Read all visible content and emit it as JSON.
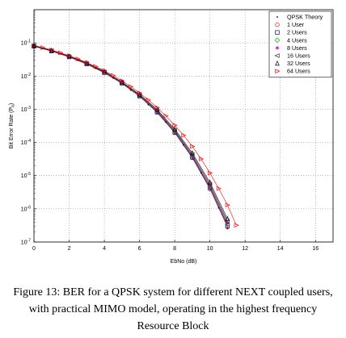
{
  "chart_data": {
    "type": "line",
    "title": "",
    "xlabel": "EbNo (dB)",
    "ylabel": "Bit Error Rate (P_b)",
    "ylabel_main": "Bit Error Rate (P",
    "ylabel_sub": "b",
    "ylabel_close": ")",
    "xlim": [
      0,
      17
    ],
    "ylim": [
      1e-07,
      1
    ],
    "yscale": "log",
    "grid": true,
    "legend_position": "top-right",
    "xticks": [
      0,
      2,
      4,
      6,
      8,
      10,
      12,
      14,
      16
    ],
    "xtick_labels": [
      "0",
      "2",
      "4",
      "6",
      "8",
      "10",
      "12",
      "14",
      "16"
    ],
    "yticks": [
      0.1,
      0.01,
      0.001,
      0.0001,
      1e-05,
      1e-06,
      1e-07
    ],
    "ytick_labels": [
      {
        "base": "10",
        "exp": "-1"
      },
      {
        "base": "10",
        "exp": "-2"
      },
      {
        "base": "10",
        "exp": "-3"
      },
      {
        "base": "10",
        "exp": "-4"
      },
      {
        "base": "10",
        "exp": "-5"
      },
      {
        "base": "10",
        "exp": "-6"
      },
      {
        "base": "10",
        "exp": "-7"
      }
    ],
    "series": [
      {
        "name": "QPSK Theory",
        "marker": "dot",
        "color": "#000000",
        "x": [
          0,
          0.5,
          1,
          1.5,
          2,
          2.5,
          3,
          3.5,
          4,
          4.5,
          5,
          5.5,
          6,
          6.5,
          7,
          7.5,
          8,
          8.5,
          9,
          9.5,
          10,
          10.5,
          11
        ],
        "y": [
          0.0786,
          0.0671,
          0.0563,
          0.0464,
          0.0375,
          0.0296,
          0.0229,
          0.0172,
          0.0125,
          0.00873,
          0.00587,
          0.00378,
          0.00239,
          0.00137,
          0.000773,
          0.000408,
          0.000191,
          8.39e-05,
          3.36e-05,
          1.21e-05,
          3.87e-06,
          1.07e-06,
          2.61e-07
        ]
      },
      {
        "name": "1 User",
        "marker": "circle",
        "color": "#ff0000",
        "x": [
          0,
          1,
          2,
          3,
          4,
          5,
          6,
          7,
          8,
          9,
          10,
          11
        ],
        "y": [
          0.0786,
          0.0563,
          0.0375,
          0.0229,
          0.0125,
          0.00597,
          0.00245,
          0.0008,
          0.000195,
          3.45e-05,
          4e-06,
          2.8e-07
        ]
      },
      {
        "name": "2 Users",
        "marker": "square",
        "color": "#000099",
        "x": [
          0,
          1,
          2,
          3,
          4,
          5,
          6,
          7,
          8,
          9,
          10,
          11
        ],
        "y": [
          0.079,
          0.0566,
          0.0378,
          0.0231,
          0.0127,
          0.00605,
          0.00249,
          0.00082,
          0.000201,
          3.58e-05,
          4.3e-06,
          3.1e-07
        ]
      },
      {
        "name": "4 Users",
        "marker": "diamond",
        "color": "#00aa00",
        "x": [
          0,
          1,
          2,
          3,
          4,
          5,
          6,
          7,
          8,
          9,
          10,
          11
        ],
        "y": [
          0.0795,
          0.057,
          0.0381,
          0.0234,
          0.0129,
          0.00615,
          0.00254,
          0.00085,
          0.000209,
          3.78e-05,
          4.6e-06,
          3.4e-07
        ]
      },
      {
        "name": "8 Users",
        "marker": "star",
        "color": "#cc00cc",
        "x": [
          0,
          1,
          2,
          3,
          4,
          5,
          6,
          7,
          8,
          9,
          10,
          11
        ],
        "y": [
          0.08,
          0.0575,
          0.0385,
          0.0237,
          0.0131,
          0.00625,
          0.0026,
          0.00088,
          0.00022,
          4e-05,
          5e-06,
          3.8e-07
        ]
      },
      {
        "name": "16 Users",
        "marker": "triangle-left",
        "color": "#333333",
        "x": [
          0,
          1,
          2,
          3,
          4,
          5,
          6,
          7,
          8,
          9,
          10,
          11
        ],
        "y": [
          0.081,
          0.0582,
          0.039,
          0.0241,
          0.0134,
          0.0064,
          0.00268,
          0.00092,
          0.000232,
          4.3e-05,
          5.5e-06,
          4.2e-07
        ]
      },
      {
        "name": "32 Users",
        "marker": "triangle-up",
        "color": "#000000",
        "x": [
          0,
          1,
          2,
          3,
          4,
          5,
          6,
          7,
          8,
          9,
          10,
          11
        ],
        "y": [
          0.0822,
          0.0592,
          0.0398,
          0.0247,
          0.0138,
          0.00665,
          0.0028,
          0.00098,
          0.000252,
          4.8e-05,
          6.3e-06,
          5e-07
        ]
      },
      {
        "name": "64 Users",
        "marker": "triangle-right",
        "color": "#ff0000",
        "x": [
          0,
          0.5,
          1,
          1.5,
          2,
          2.5,
          3,
          3.5,
          4,
          4.5,
          5,
          5.5,
          6,
          6.5,
          7,
          7.5,
          8,
          8.5,
          9,
          9.5,
          10,
          10.5,
          11,
          11.5
        ],
        "y": [
          0.0845,
          0.072,
          0.061,
          0.0505,
          0.041,
          0.0328,
          0.0256,
          0.0195,
          0.0145,
          0.0104,
          0.0072,
          0.0048,
          0.0031,
          0.0019,
          0.00112,
          0.00063,
          0.00033,
          0.000164,
          7.6e-05,
          3.2e-05,
          1.2e-05,
          4.1e-06,
          1.3e-06,
          3.2e-07
        ]
      }
    ]
  },
  "caption": "Figure 13: BER for a QPSK system for different NEXT coupled users, with practical MIMO model, operating in the highest frequency Resource Block"
}
